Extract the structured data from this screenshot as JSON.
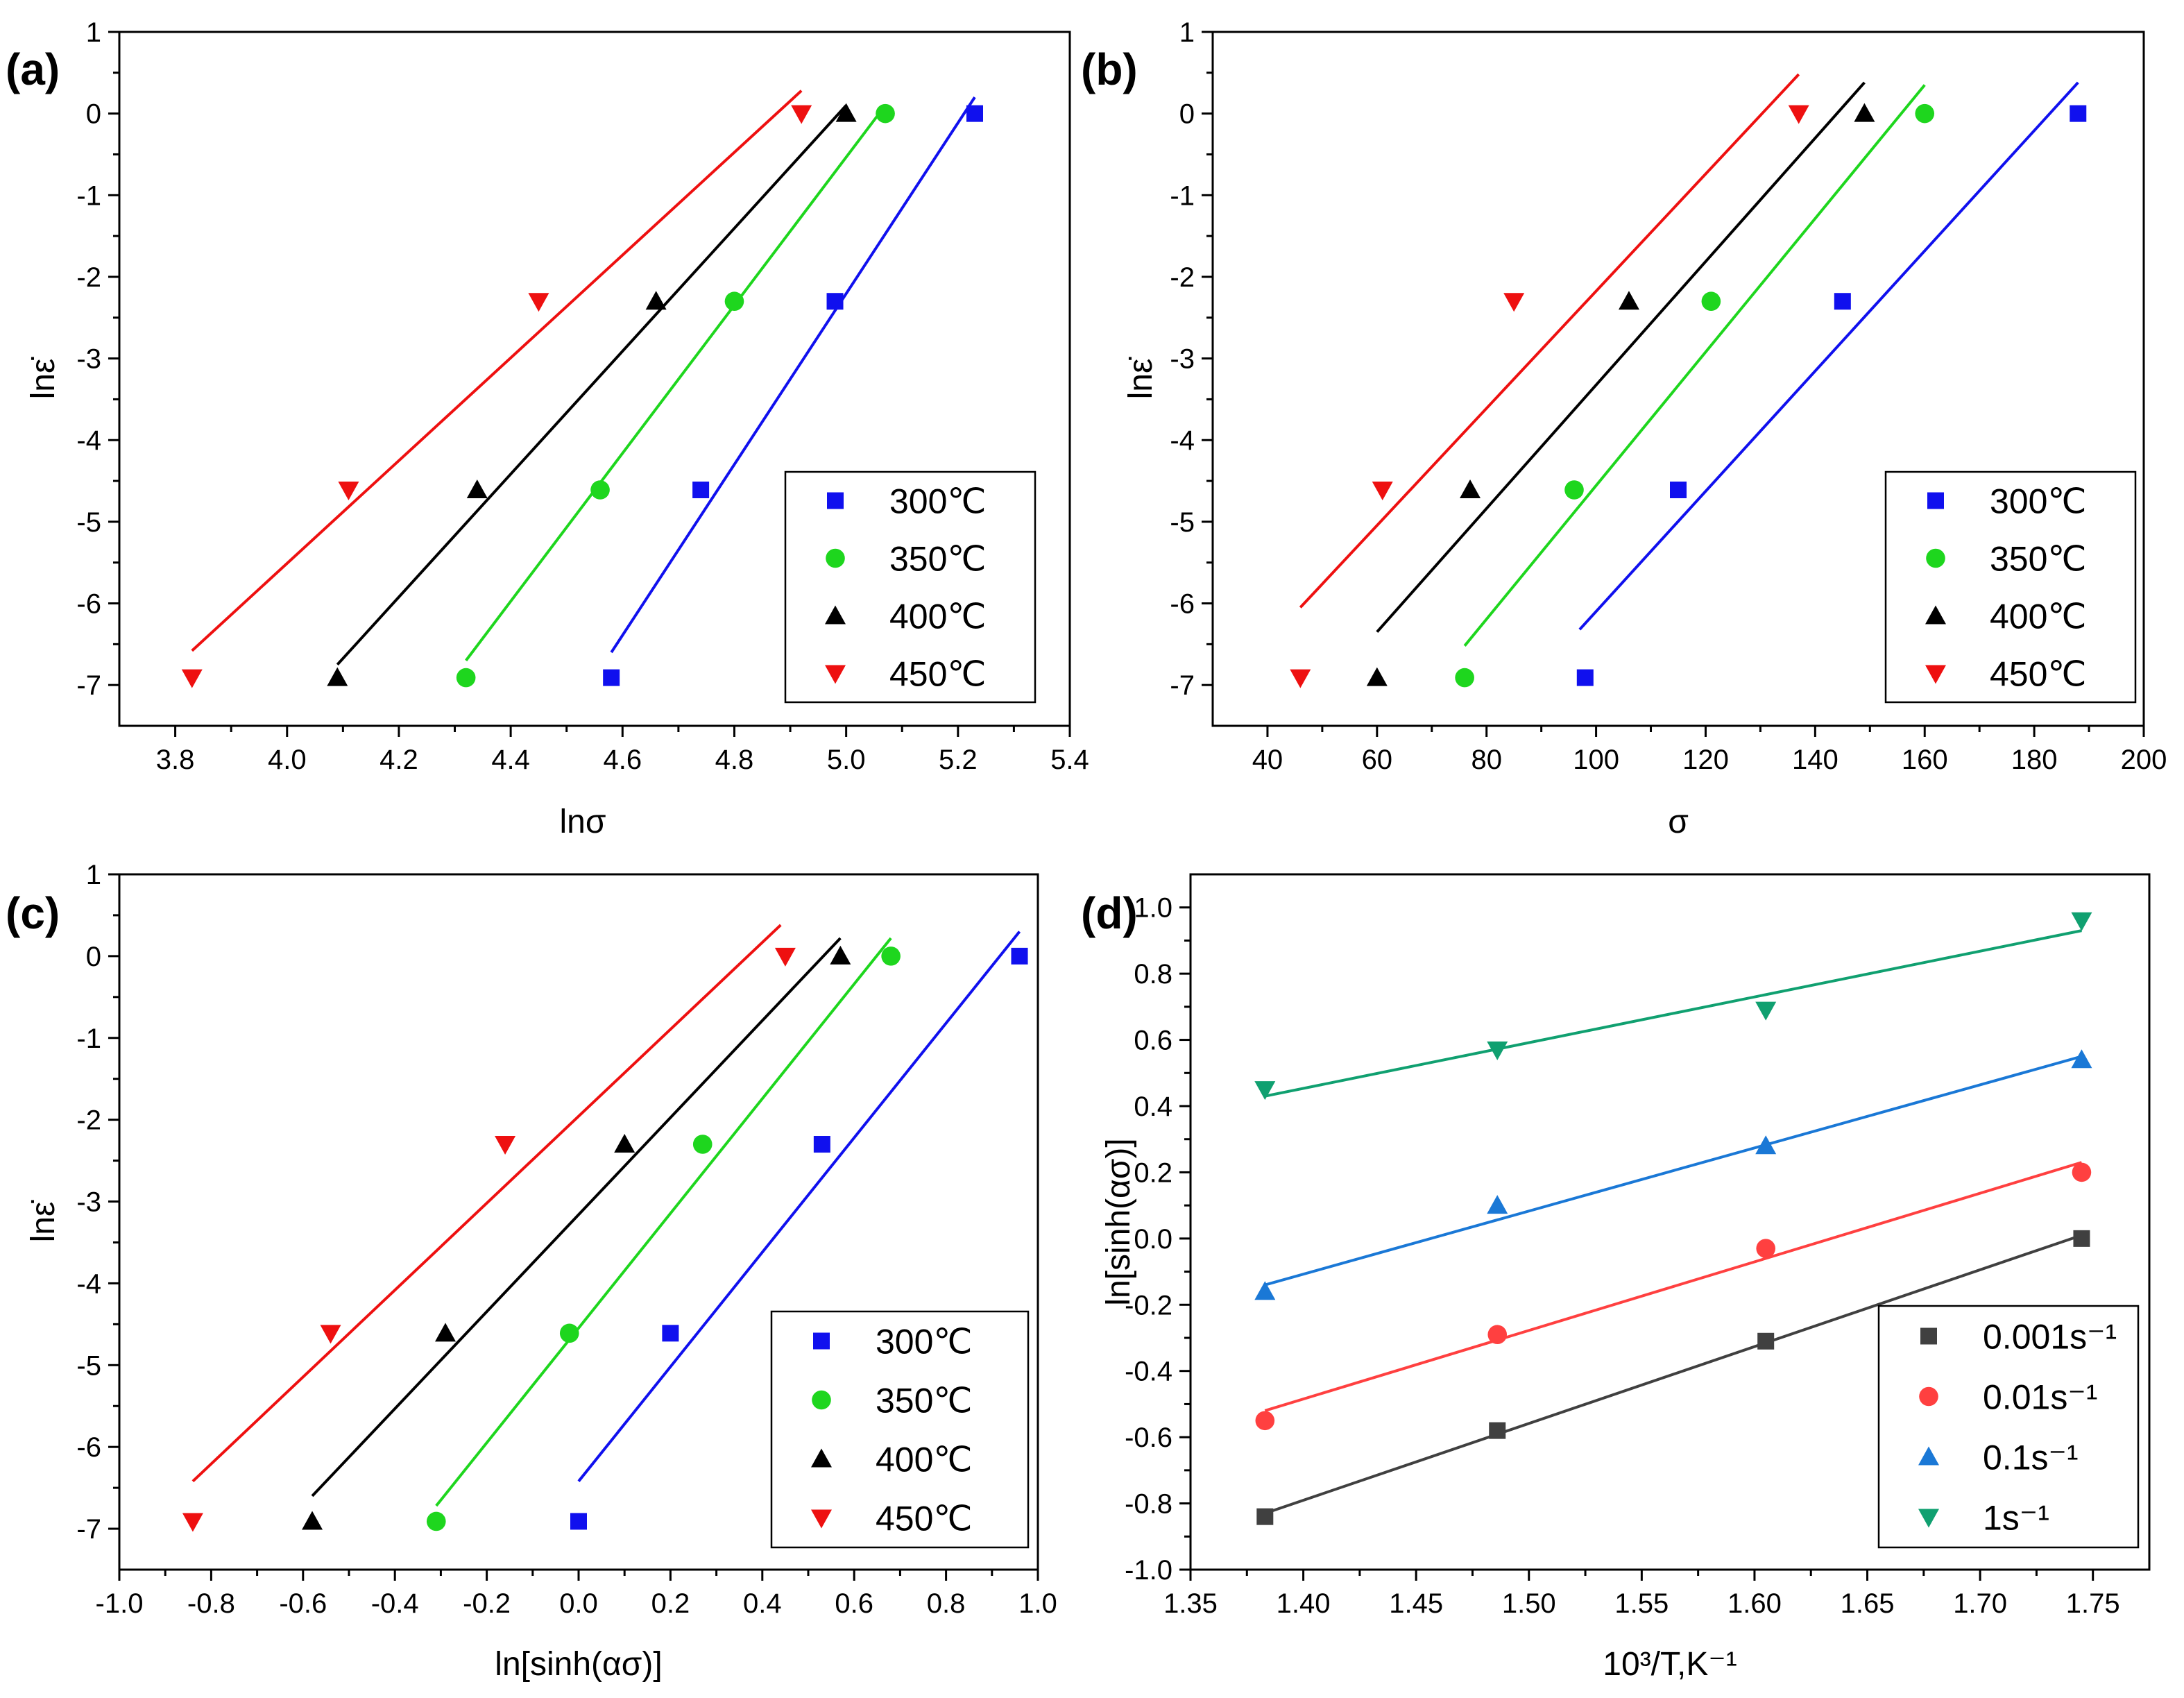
{
  "chart_data": [
    {
      "panel_label": "(a)",
      "type": "scatter",
      "xlabel": "lnσ",
      "ylabel": "lnε̇",
      "xlim": [
        3.7,
        5.4
      ],
      "ylim": [
        -7.5,
        1
      ],
      "xticks": [
        3.8,
        4.0,
        4.2,
        4.4,
        4.6,
        4.8,
        5.0,
        5.2,
        5.4
      ],
      "xtick_labels": [
        "3.8",
        "4.0",
        "4.2",
        "4.4",
        "4.6",
        "4.8",
        "5.0",
        "5.2",
        "5.4"
      ],
      "yticks": [
        1,
        0,
        -1,
        -2,
        -3,
        -4,
        -5,
        -6,
        -7
      ],
      "ytick_labels": [
        "1",
        "0",
        "-1",
        "-2",
        "-3",
        "-4",
        "-5",
        "-6",
        "-7"
      ],
      "legend_position": "bottom-right",
      "series": [
        {
          "name": "300℃",
          "color": "#1010ee",
          "marker": "square",
          "x": [
            4.58,
            4.74,
            4.98,
            5.23
          ],
          "y": [
            -6.91,
            -4.61,
            -2.3,
            0.0
          ],
          "fit": {
            "x": [
              4.58,
              5.23
            ],
            "y": [
              -6.6,
              0.2
            ]
          }
        },
        {
          "name": "350℃",
          "color": "#1ed61e",
          "marker": "circle",
          "x": [
            4.32,
            4.56,
            4.8,
            5.07
          ],
          "y": [
            -6.91,
            -4.61,
            -2.3,
            0.0
          ],
          "fit": {
            "x": [
              4.32,
              5.07
            ],
            "y": [
              -6.7,
              0.1
            ]
          }
        },
        {
          "name": "400℃",
          "color": "#000000",
          "marker": "triangle-up",
          "x": [
            4.09,
            4.34,
            4.66,
            5.0
          ],
          "y": [
            -6.91,
            -4.61,
            -2.3,
            0.0
          ],
          "fit": {
            "x": [
              4.09,
              5.0
            ],
            "y": [
              -6.75,
              0.1
            ]
          }
        },
        {
          "name": "450℃",
          "color": "#ee1010",
          "marker": "triangle-down",
          "x": [
            3.83,
            4.11,
            4.45,
            4.92
          ],
          "y": [
            -6.91,
            -4.61,
            -2.3,
            0.0
          ],
          "fit": {
            "x": [
              3.83,
              4.92
            ],
            "y": [
              -6.58,
              0.28
            ]
          }
        }
      ]
    },
    {
      "panel_label": "(b)",
      "type": "scatter",
      "xlabel": "σ",
      "ylabel": "lnε̇",
      "xlim": [
        30,
        200
      ],
      "ylim": [
        -7.5,
        1
      ],
      "xticks": [
        40,
        60,
        80,
        100,
        120,
        140,
        160,
        180,
        200
      ],
      "xtick_labels": [
        "40",
        "60",
        "80",
        "100",
        "120",
        "140",
        "160",
        "180",
        "200"
      ],
      "yticks": [
        1,
        0,
        -1,
        -2,
        -3,
        -4,
        -5,
        -6,
        -7
      ],
      "ytick_labels": [
        "1",
        "0",
        "-1",
        "-2",
        "-3",
        "-4",
        "-5",
        "-6",
        "-7"
      ],
      "legend_position": "bottom-right",
      "series": [
        {
          "name": "300℃",
          "color": "#1010ee",
          "marker": "square",
          "x": [
            98,
            115,
            145,
            188
          ],
          "y": [
            -6.91,
            -4.61,
            -2.3,
            0.0
          ],
          "fit": {
            "x": [
              97,
              188
            ],
            "y": [
              -6.32,
              0.38
            ]
          }
        },
        {
          "name": "350℃",
          "color": "#1ed61e",
          "marker": "circle",
          "x": [
            76,
            96,
            121,
            160
          ],
          "y": [
            -6.91,
            -4.61,
            -2.3,
            0.0
          ],
          "fit": {
            "x": [
              76,
              160
            ],
            "y": [
              -6.52,
              0.35
            ]
          }
        },
        {
          "name": "400℃",
          "color": "#000000",
          "marker": "triangle-up",
          "x": [
            60,
            77,
            106,
            149
          ],
          "y": [
            -6.91,
            -4.61,
            -2.3,
            0.0
          ],
          "fit": {
            "x": [
              60,
              149
            ],
            "y": [
              -6.35,
              0.38
            ]
          }
        },
        {
          "name": "450℃",
          "color": "#ee1010",
          "marker": "triangle-down",
          "x": [
            46,
            61,
            85,
            137
          ],
          "y": [
            -6.91,
            -4.61,
            -2.3,
            0.0
          ],
          "fit": {
            "x": [
              46,
              137
            ],
            "y": [
              -6.05,
              0.48
            ]
          }
        }
      ]
    },
    {
      "panel_label": "(c)",
      "type": "scatter",
      "xlabel": "ln[sinh(ασ)]",
      "ylabel": "lnε̇",
      "xlim": [
        -1.0,
        1.0
      ],
      "ylim": [
        -7.5,
        1
      ],
      "xticks": [
        -1.0,
        -0.8,
        -0.6,
        -0.4,
        -0.2,
        0.0,
        0.2,
        0.4,
        0.6,
        0.8,
        1.0
      ],
      "xtick_labels": [
        "-1.0",
        "-0.8",
        "-0.6",
        "-0.4",
        "-0.2",
        "0.0",
        "0.2",
        "0.4",
        "0.6",
        "0.8",
        "1.0"
      ],
      "yticks": [
        1,
        0,
        -1,
        -2,
        -3,
        -4,
        -5,
        -6,
        -7
      ],
      "ytick_labels": [
        "1",
        "0",
        "-1",
        "-2",
        "-3",
        "-4",
        "-5",
        "-6",
        "-7"
      ],
      "legend_position": "bottom-right",
      "series": [
        {
          "name": "300℃",
          "color": "#1010ee",
          "marker": "square",
          "x": [
            0.0,
            0.2,
            0.53,
            0.96
          ],
          "y": [
            -6.91,
            -4.61,
            -2.3,
            0.0
          ],
          "fit": {
            "x": [
              0.0,
              0.96
            ],
            "y": [
              -6.42,
              0.3
            ]
          }
        },
        {
          "name": "350℃",
          "color": "#1ed61e",
          "marker": "circle",
          "x": [
            -0.31,
            -0.02,
            0.27,
            0.68
          ],
          "y": [
            -6.91,
            -4.61,
            -2.3,
            0.0
          ],
          "fit": {
            "x": [
              -0.31,
              0.68
            ],
            "y": [
              -6.72,
              0.22
            ]
          }
        },
        {
          "name": "400℃",
          "color": "#000000",
          "marker": "triangle-up",
          "x": [
            -0.58,
            -0.29,
            0.1,
            0.57
          ],
          "y": [
            -6.91,
            -4.61,
            -2.3,
            0.0
          ],
          "fit": {
            "x": [
              -0.58,
              0.57
            ],
            "y": [
              -6.6,
              0.22
            ]
          }
        },
        {
          "name": "450℃",
          "color": "#ee1010",
          "marker": "triangle-down",
          "x": [
            -0.84,
            -0.54,
            -0.16,
            0.45
          ],
          "y": [
            -6.91,
            -4.61,
            -2.3,
            0.0
          ],
          "fit": {
            "x": [
              -0.84,
              0.44
            ],
            "y": [
              -6.42,
              0.38
            ]
          }
        }
      ]
    },
    {
      "panel_label": "(d)",
      "type": "scatter",
      "xlabel": "10³/T,K⁻¹",
      "ylabel": "ln[sinh(ασ)]",
      "xlim": [
        1.35,
        1.775
      ],
      "ylim": [
        -1.0,
        1.1
      ],
      "xticks": [
        1.35,
        1.4,
        1.45,
        1.5,
        1.55,
        1.6,
        1.65,
        1.7,
        1.75
      ],
      "xtick_labels": [
        "1.35",
        "1.40",
        "1.45",
        "1.50",
        "1.55",
        "1.60",
        "1.65",
        "1.70",
        "1.75"
      ],
      "yticks": [
        1.0,
        0.8,
        0.6,
        0.4,
        0.2,
        0.0,
        -0.2,
        -0.4,
        -0.6,
        -0.8,
        -1.0
      ],
      "ytick_labels": [
        "1.0",
        "0.8",
        "0.6",
        "0.4",
        "0.2",
        "0.0",
        "-0.2",
        "-0.4",
        "-0.6",
        "-0.8",
        "-1.0"
      ],
      "legend_position": "bottom-right",
      "series": [
        {
          "name": "0.001s⁻¹",
          "color": "#404040",
          "marker": "square",
          "x": [
            1.383,
            1.486,
            1.605,
            1.745
          ],
          "y": [
            -0.84,
            -0.58,
            -0.31,
            0.0
          ],
          "fit": {
            "x": [
              1.383,
              1.745
            ],
            "y": [
              -0.83,
              0.01
            ]
          }
        },
        {
          "name": "0.01s⁻¹",
          "color": "#ff4040",
          "marker": "circle",
          "x": [
            1.383,
            1.486,
            1.605,
            1.745
          ],
          "y": [
            -0.55,
            -0.29,
            -0.03,
            0.2
          ],
          "fit": {
            "x": [
              1.383,
              1.745
            ],
            "y": [
              -0.52,
              0.23
            ]
          }
        },
        {
          "name": "0.1s⁻¹",
          "color": "#1a78d6",
          "marker": "triangle-up",
          "x": [
            1.383,
            1.486,
            1.605,
            1.745
          ],
          "y": [
            -0.16,
            0.1,
            0.28,
            0.54
          ],
          "fit": {
            "x": [
              1.383,
              1.745
            ],
            "y": [
              -0.14,
              0.55
            ]
          }
        },
        {
          "name": "1s⁻¹",
          "color": "#10a070",
          "marker": "triangle-down",
          "x": [
            1.383,
            1.486,
            1.605,
            1.745
          ],
          "y": [
            0.45,
            0.57,
            0.69,
            0.96
          ],
          "fit": {
            "x": [
              1.383,
              1.745
            ],
            "y": [
              0.43,
              0.93
            ]
          }
        }
      ]
    }
  ]
}
